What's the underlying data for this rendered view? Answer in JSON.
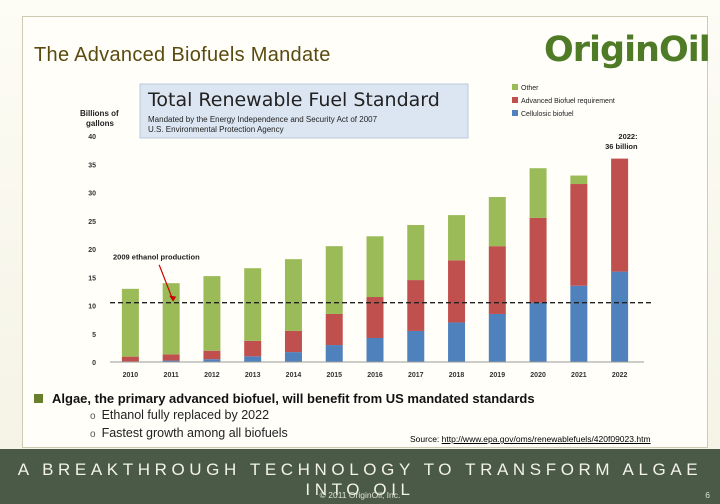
{
  "slide": {
    "title": "The Advanced Biofuels Mandate",
    "logo_text": "OriginOil",
    "bullet_main": "Algae, the primary advanced biofuel, will benefit from US mandated standards",
    "bullet_subs": [
      "Ethanol fully replaced by 2022",
      "Fastest growth among all biofuels"
    ],
    "source_label": "Source:",
    "source_link": "http://www.epa.gov/oms/renewablefuels/420f09023.htm",
    "tagline": "A BREAKTHROUGH TECHNOLOGY TO TRANSFORM ALGAE INTO OIL",
    "copyright": "© 2011 OriginOil, Inc.",
    "page_number": "6"
  },
  "chart_data": {
    "type": "bar",
    "stacked": true,
    "title": "Total Renewable Fuel Standard",
    "subtitle_line1": "Mandated by the Energy Independence and Security Act of 2007",
    "subtitle_line2": "U.S. Environmental Protection Agency",
    "ylabel_line1": "Billions of",
    "ylabel_line2": "gallons",
    "ylim": [
      0,
      40
    ],
    "yticks": [
      0,
      5,
      10,
      15,
      20,
      25,
      30,
      35,
      40
    ],
    "categories": [
      "2010",
      "2011",
      "2012",
      "2013",
      "2014",
      "2015",
      "2016",
      "2017",
      "2018",
      "2019",
      "2020",
      "2021",
      "2022"
    ],
    "series": [
      {
        "name": "Cellulosic biofuel",
        "color": "#4f81bd",
        "values": [
          0.1,
          0.25,
          0.5,
          1.0,
          1.75,
          3.0,
          4.25,
          5.5,
          7.0,
          8.5,
          10.5,
          13.5,
          16.0
        ]
      },
      {
        "name": "Advanced Biofuel requirement",
        "color": "#c0504d",
        "values": [
          0.85,
          1.1,
          1.5,
          2.75,
          3.75,
          5.5,
          7.25,
          9.0,
          11.0,
          12.0,
          15.0,
          18.0,
          20.0
        ]
      },
      {
        "name": "Other",
        "color": "#9bbb59",
        "values": [
          12.0,
          12.6,
          13.2,
          12.85,
          12.7,
          12.0,
          10.75,
          9.75,
          8.0,
          8.7,
          8.8,
          1.5,
          0.0
        ]
      }
    ],
    "legend_order": [
      "Other",
      "Advanced Biofuel requirement",
      "Cellulosic biofuel"
    ],
    "reference_line": {
      "value": 10.5,
      "style": "dashed"
    },
    "annotations": {
      "ethanol_label": "2009 ethanol production",
      "ethanol_year": "2011",
      "final_label_line1": "2022:",
      "final_label_line2": "36 billion"
    }
  },
  "colors": {
    "title_brown": "#5a4a10",
    "band": "#4a5a47",
    "logo_green": "#4f7b27"
  }
}
